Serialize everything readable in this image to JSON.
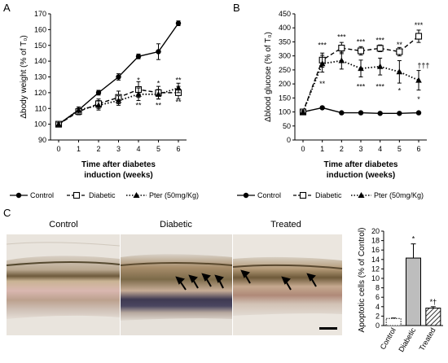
{
  "panels": {
    "a": {
      "letter": "A"
    },
    "b": {
      "letter": "B"
    },
    "c": {
      "letter": "C"
    }
  },
  "legend": {
    "control": "Control",
    "diabetic": "Diabetic",
    "pter": "Pter (50mg/Kg)"
  },
  "micrographs": {
    "control": "Control",
    "diabetic": "Diabetic",
    "treated": "Treated"
  },
  "colors": {
    "line": "#000000",
    "bar_control": "#ffffff",
    "bar_diabetic": "#bdbdbd",
    "bar_treated_hatch": "#000000"
  },
  "chart_data": [
    {
      "type": "line",
      "id": "body-weight",
      "xlabel": "Time after diabetes induction (weeks)",
      "xlabel_lines": [
        "Time after diabetes",
        "induction (weeks)"
      ],
      "ylabel": "Δbody weight (% of T₀)",
      "ylim": [
        90,
        170
      ],
      "yticks": [
        90,
        100,
        110,
        120,
        130,
        140,
        150,
        160,
        170
      ],
      "xticks": [
        0,
        1,
        2,
        3,
        4,
        5,
        6
      ],
      "x": [
        0,
        1,
        2,
        3,
        4,
        5,
        6
      ],
      "series": [
        {
          "name": "Control",
          "style": "solid",
          "marker": "circle",
          "values": [
            100,
            109,
            120,
            130,
            143,
            146,
            164
          ],
          "errors": [
            1,
            1,
            1.5,
            2,
            1.5,
            5,
            1.5
          ]
        },
        {
          "name": "Diabetic",
          "style": "dashed",
          "marker": "open-square",
          "values": [
            100,
            108,
            113,
            117,
            122,
            120,
            120
          ],
          "errors": [
            1,
            2,
            3,
            4,
            5,
            4,
            4
          ]
        },
        {
          "name": "Pter (50mg/Kg)",
          "style": "dotted",
          "marker": "triangle",
          "values": [
            100,
            109,
            112,
            115,
            119,
            119,
            123
          ],
          "errors": [
            1,
            2,
            3,
            3,
            4,
            3,
            3
          ]
        }
      ],
      "annotations": [
        {
          "x": 4,
          "y": 128,
          "text": "*"
        },
        {
          "x": 5,
          "y": 126,
          "text": "*"
        },
        {
          "x": 6,
          "y": 128,
          "text": "**"
        },
        {
          "x": 4,
          "y": 112,
          "text": "**"
        },
        {
          "x": 5,
          "y": 112,
          "text": "**"
        },
        {
          "x": 6,
          "y": 114,
          "text": "**"
        }
      ]
    },
    {
      "type": "line",
      "id": "blood-glucose",
      "xlabel": "Time after diabetes induction (weeks)",
      "xlabel_lines": [
        "Time after diabetes",
        "induction (weeks)"
      ],
      "ylabel": "Δblood glucose (% of T₀)",
      "ylim": [
        0,
        450
      ],
      "yticks": [
        0,
        50,
        100,
        150,
        200,
        250,
        300,
        350,
        400,
        450
      ],
      "xticks": [
        0,
        1,
        2,
        3,
        4,
        5,
        6
      ],
      "x": [
        0,
        1,
        2,
        3,
        4,
        5,
        6
      ],
      "series": [
        {
          "name": "Control",
          "style": "solid",
          "marker": "circle",
          "values": [
            100,
            115,
            97,
            97,
            95,
            95,
            97
          ],
          "errors": [
            3,
            3,
            3,
            3,
            3,
            3,
            3
          ]
        },
        {
          "name": "Diabetic",
          "style": "dashed",
          "marker": "open-square",
          "values": [
            100,
            285,
            328,
            318,
            327,
            315,
            370
          ],
          "errors": [
            5,
            25,
            20,
            15,
            12,
            15,
            22
          ]
        },
        {
          "name": "Pter (50mg/Kg)",
          "style": "dotted",
          "marker": "triangle",
          "values": [
            100,
            272,
            283,
            255,
            262,
            243,
            213
          ],
          "errors": [
            5,
            30,
            30,
            30,
            30,
            40,
            35
          ]
        }
      ],
      "annotations": [
        {
          "x": 1,
          "y": 338,
          "text": "***"
        },
        {
          "x": 2,
          "y": 367,
          "text": "***"
        },
        {
          "x": 3,
          "y": 350,
          "text": "***"
        },
        {
          "x": 4,
          "y": 355,
          "text": "***"
        },
        {
          "x": 5,
          "y": 340,
          "text": "**"
        },
        {
          "x": 6,
          "y": 410,
          "text": "***"
        },
        {
          "x": 1,
          "y": 200,
          "text": "**"
        },
        {
          "x": 3,
          "y": 190,
          "text": "***"
        },
        {
          "x": 4,
          "y": 190,
          "text": "***"
        },
        {
          "x": 5,
          "y": 175,
          "text": "*"
        },
        {
          "x": 6.25,
          "y": 265,
          "text": "†††"
        },
        {
          "x": 6,
          "y": 145,
          "text": "*"
        }
      ]
    },
    {
      "type": "bar",
      "id": "apoptotic-cells",
      "ylabel": "Apoptotic cells (% of Control)",
      "categories": [
        "Control",
        "Diabetic",
        "Treated"
      ],
      "values": [
        1.5,
        14.3,
        3.7
      ],
      "errors": [
        0.1,
        3.0,
        0.3
      ],
      "ylim": [
        0,
        20
      ],
      "yticks": [
        0,
        2,
        4,
        6,
        8,
        10,
        12,
        14,
        16,
        18,
        20
      ],
      "fills": [
        "white",
        "gray",
        "hatched"
      ],
      "annotations": [
        {
          "category": "Diabetic",
          "text": "*"
        },
        {
          "category": "Treated",
          "text": "*†"
        }
      ]
    }
  ]
}
